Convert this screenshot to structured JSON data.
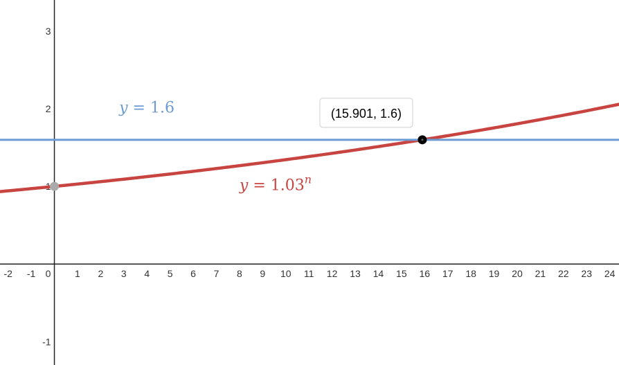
{
  "chart_data": {
    "type": "line",
    "title": "",
    "xlabel": "",
    "ylabel": "",
    "xlim": [
      -2.35,
      24.4
    ],
    "ylim": [
      -1.3,
      3.4
    ],
    "x_ticks": [
      {
        "value": -2,
        "label": "-2"
      },
      {
        "value": -1,
        "label": "-1"
      },
      {
        "value": 0,
        "label": "0"
      },
      {
        "value": 1,
        "label": "1"
      },
      {
        "value": 2,
        "label": "2"
      },
      {
        "value": 3,
        "label": "3"
      },
      {
        "value": 4,
        "label": "4"
      },
      {
        "value": 5,
        "label": "5"
      },
      {
        "value": 6,
        "label": "6"
      },
      {
        "value": 7,
        "label": "7"
      },
      {
        "value": 8,
        "label": "8"
      },
      {
        "value": 9,
        "label": "9"
      },
      {
        "value": 10,
        "label": "10"
      },
      {
        "value": 11,
        "label": "11"
      },
      {
        "value": 12,
        "label": "12"
      },
      {
        "value": 13,
        "label": "13"
      },
      {
        "value": 14,
        "label": "14"
      },
      {
        "value": 15,
        "label": "15"
      },
      {
        "value": 16,
        "label": "16"
      },
      {
        "value": 17,
        "label": "17"
      },
      {
        "value": 18,
        "label": "18"
      },
      {
        "value": 19,
        "label": "19"
      },
      {
        "value": 20,
        "label": "20"
      },
      {
        "value": 21,
        "label": "21"
      },
      {
        "value": 22,
        "label": "22"
      },
      {
        "value": 23,
        "label": "23"
      },
      {
        "value": 24,
        "label": "24"
      }
    ],
    "y_ticks": [
      {
        "value": 3,
        "label": "3"
      },
      {
        "value": 2,
        "label": "2"
      },
      {
        "value": 1,
        "label": "1"
      },
      {
        "value": -1,
        "label": "-1"
      }
    ],
    "grid": false,
    "series": [
      {
        "name": "y = 1.03^n",
        "kind": "exponential",
        "base": 1.03,
        "color": "#c74440",
        "label": {
          "lhs": "y",
          "eq": " = ",
          "base": "1.03",
          "exp": "n",
          "at": [
            8,
            0.95
          ]
        }
      },
      {
        "name": "y = 1.6",
        "kind": "constant",
        "value": 1.6,
        "color": "#6b9bd2",
        "label": {
          "lhs": "y",
          "eq": " = ",
          "value": "1.6",
          "at": [
            2.8,
            1.95
          ]
        }
      }
    ],
    "points": [
      {
        "x": 0,
        "y": 1,
        "color": "#aaaaaa"
      },
      {
        "x": 15.901,
        "y": 1.6,
        "color": "#000000",
        "label": "(15.901, 1.6)"
      }
    ]
  }
}
